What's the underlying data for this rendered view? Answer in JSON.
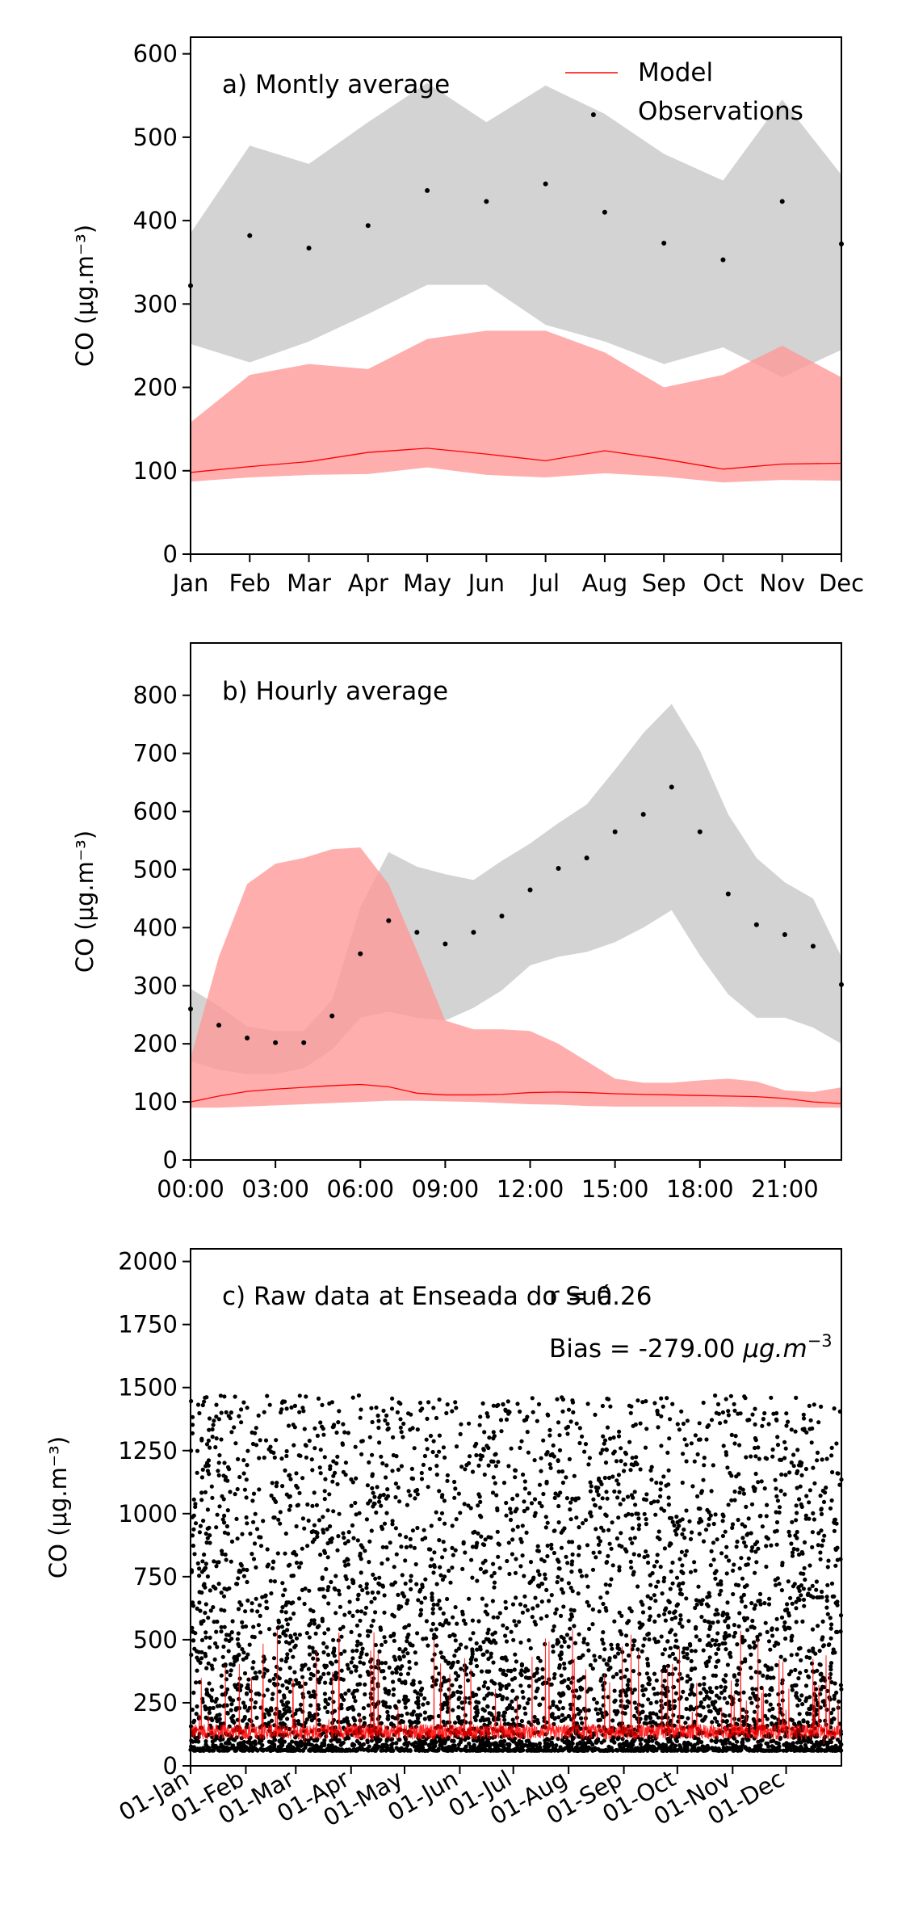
{
  "colors": {
    "model": "#ff0000",
    "model_band": "#ff9a9a",
    "obs_band": "#c8c8c8",
    "obs_points": "#000000",
    "axes": "#000000"
  },
  "legend": [
    {
      "label": "Model",
      "marker": "line",
      "color": "#ff0000"
    },
    {
      "label": "Observations",
      "marker": "none",
      "color": "#000000"
    }
  ],
  "chart_data": [
    {
      "type": "line",
      "panel_label": "a) Montly average",
      "ylabel": "CO (μg.m⁻³)",
      "ylim": [
        0,
        620
      ],
      "yticks": [
        0,
        100,
        200,
        300,
        400,
        500,
        600
      ],
      "categories": [
        "Jan",
        "Feb",
        "Mar",
        "Apr",
        "May",
        "Jun",
        "Jul",
        "Aug",
        "Sep",
        "Oct",
        "Nov",
        "Dec"
      ],
      "legend_position": "top-right",
      "series": [
        {
          "name": "Model",
          "kind": "line",
          "values": [
            98,
            105,
            111,
            122,
            127,
            120,
            112,
            124,
            114,
            102,
            108,
            109
          ],
          "band_lower": [
            87,
            92,
            95,
            96,
            104,
            95,
            92,
            97,
            93,
            86,
            89,
            88
          ],
          "band_upper": [
            158,
            215,
            228,
            222,
            258,
            268,
            268,
            242,
            200,
            215,
            250,
            212
          ]
        },
        {
          "name": "Observations",
          "kind": "points",
          "values": [
            322,
            382,
            367,
            394,
            436,
            423,
            444,
            410,
            373,
            353,
            423,
            372
          ],
          "band_lower": [
            252,
            230,
            255,
            288,
            323,
            323,
            275,
            255,
            228,
            248,
            212,
            245
          ],
          "band_upper": [
            385,
            490,
            468,
            518,
            565,
            518,
            562,
            528,
            480,
            448,
            545,
            455
          ]
        }
      ],
      "annotations": [
        {
          "text": "527",
          "x": "Aug",
          "note": ""
        }
      ]
    },
    {
      "type": "line",
      "panel_label": "b) Hourly average",
      "ylabel": "CO (μg.m⁻³)",
      "ylim": [
        0,
        890
      ],
      "yticks": [
        0,
        100,
        200,
        300,
        400,
        500,
        600,
        700,
        800
      ],
      "xticks": [
        "00:00",
        "03:00",
        "06:00",
        "09:00",
        "12:00",
        "15:00",
        "18:00",
        "21:00"
      ],
      "x_hours": [
        0,
        1,
        2,
        3,
        4,
        5,
        6,
        7,
        8,
        9,
        10,
        11,
        12,
        13,
        14,
        15,
        16,
        17,
        18,
        19,
        20,
        21,
        22,
        23
      ],
      "series": [
        {
          "name": "Model",
          "kind": "line",
          "values": [
            100,
            110,
            118,
            122,
            125,
            128,
            130,
            126,
            115,
            112,
            112,
            113,
            116,
            117,
            116,
            114,
            113,
            112,
            111,
            110,
            109,
            106,
            100,
            97
          ],
          "band_lower": [
            90,
            90,
            92,
            94,
            96,
            98,
            100,
            102,
            102,
            101,
            100,
            98,
            96,
            95,
            93,
            92,
            92,
            92,
            92,
            92,
            91,
            91,
            90,
            90
          ],
          "band_upper": [
            175,
            350,
            475,
            510,
            520,
            535,
            538,
            475,
            360,
            240,
            225,
            225,
            222,
            200,
            170,
            140,
            133,
            133,
            137,
            140,
            135,
            120,
            117,
            125
          ]
        },
        {
          "name": "Observations",
          "kind": "points",
          "values": [
            260,
            232,
            210,
            202,
            202,
            248,
            355,
            412,
            392,
            372,
            392,
            420,
            465,
            502,
            520,
            565,
            595,
            642,
            565,
            458,
            405,
            388,
            368,
            302
          ],
          "band_lower": [
            170,
            155,
            148,
            148,
            158,
            190,
            245,
            255,
            245,
            240,
            262,
            292,
            335,
            350,
            358,
            375,
            400,
            430,
            352,
            285,
            245,
            245,
            228,
            200
          ],
          "band_upper": [
            295,
            265,
            230,
            222,
            222,
            275,
            435,
            530,
            505,
            492,
            482,
            515,
            545,
            580,
            612,
            672,
            735,
            785,
            705,
            595,
            520,
            478,
            450,
            350
          ]
        }
      ]
    },
    {
      "type": "scatter",
      "panel_label": "c) Raw data at Enseada do Suá",
      "stats": {
        "r_text": "r = 0.26",
        "bias_text": "Bias = -279.00"
      },
      "ylabel": "CO (μg.m⁻³)",
      "ylim": [
        0,
        2050
      ],
      "yticks": [
        0,
        250,
        500,
        750,
        1000,
        1250,
        1500,
        1750,
        2000
      ],
      "xticks": [
        "01-Jan",
        "01-Feb",
        "01-Mar",
        "01-Apr",
        "01-May",
        "01-Jun",
        "01-Jul",
        "01-Aug",
        "01-Sep",
        "01-Oct",
        "01-Nov",
        "01-Dec"
      ],
      "x_start": "01-Jan",
      "x_end": "31-Dec",
      "series": [
        {
          "name": "Model",
          "kind": "line",
          "typical_range": [
            85,
            560
          ]
        },
        {
          "name": "Observations",
          "kind": "points",
          "typical_range": [
            60,
            1470
          ]
        }
      ]
    }
  ]
}
